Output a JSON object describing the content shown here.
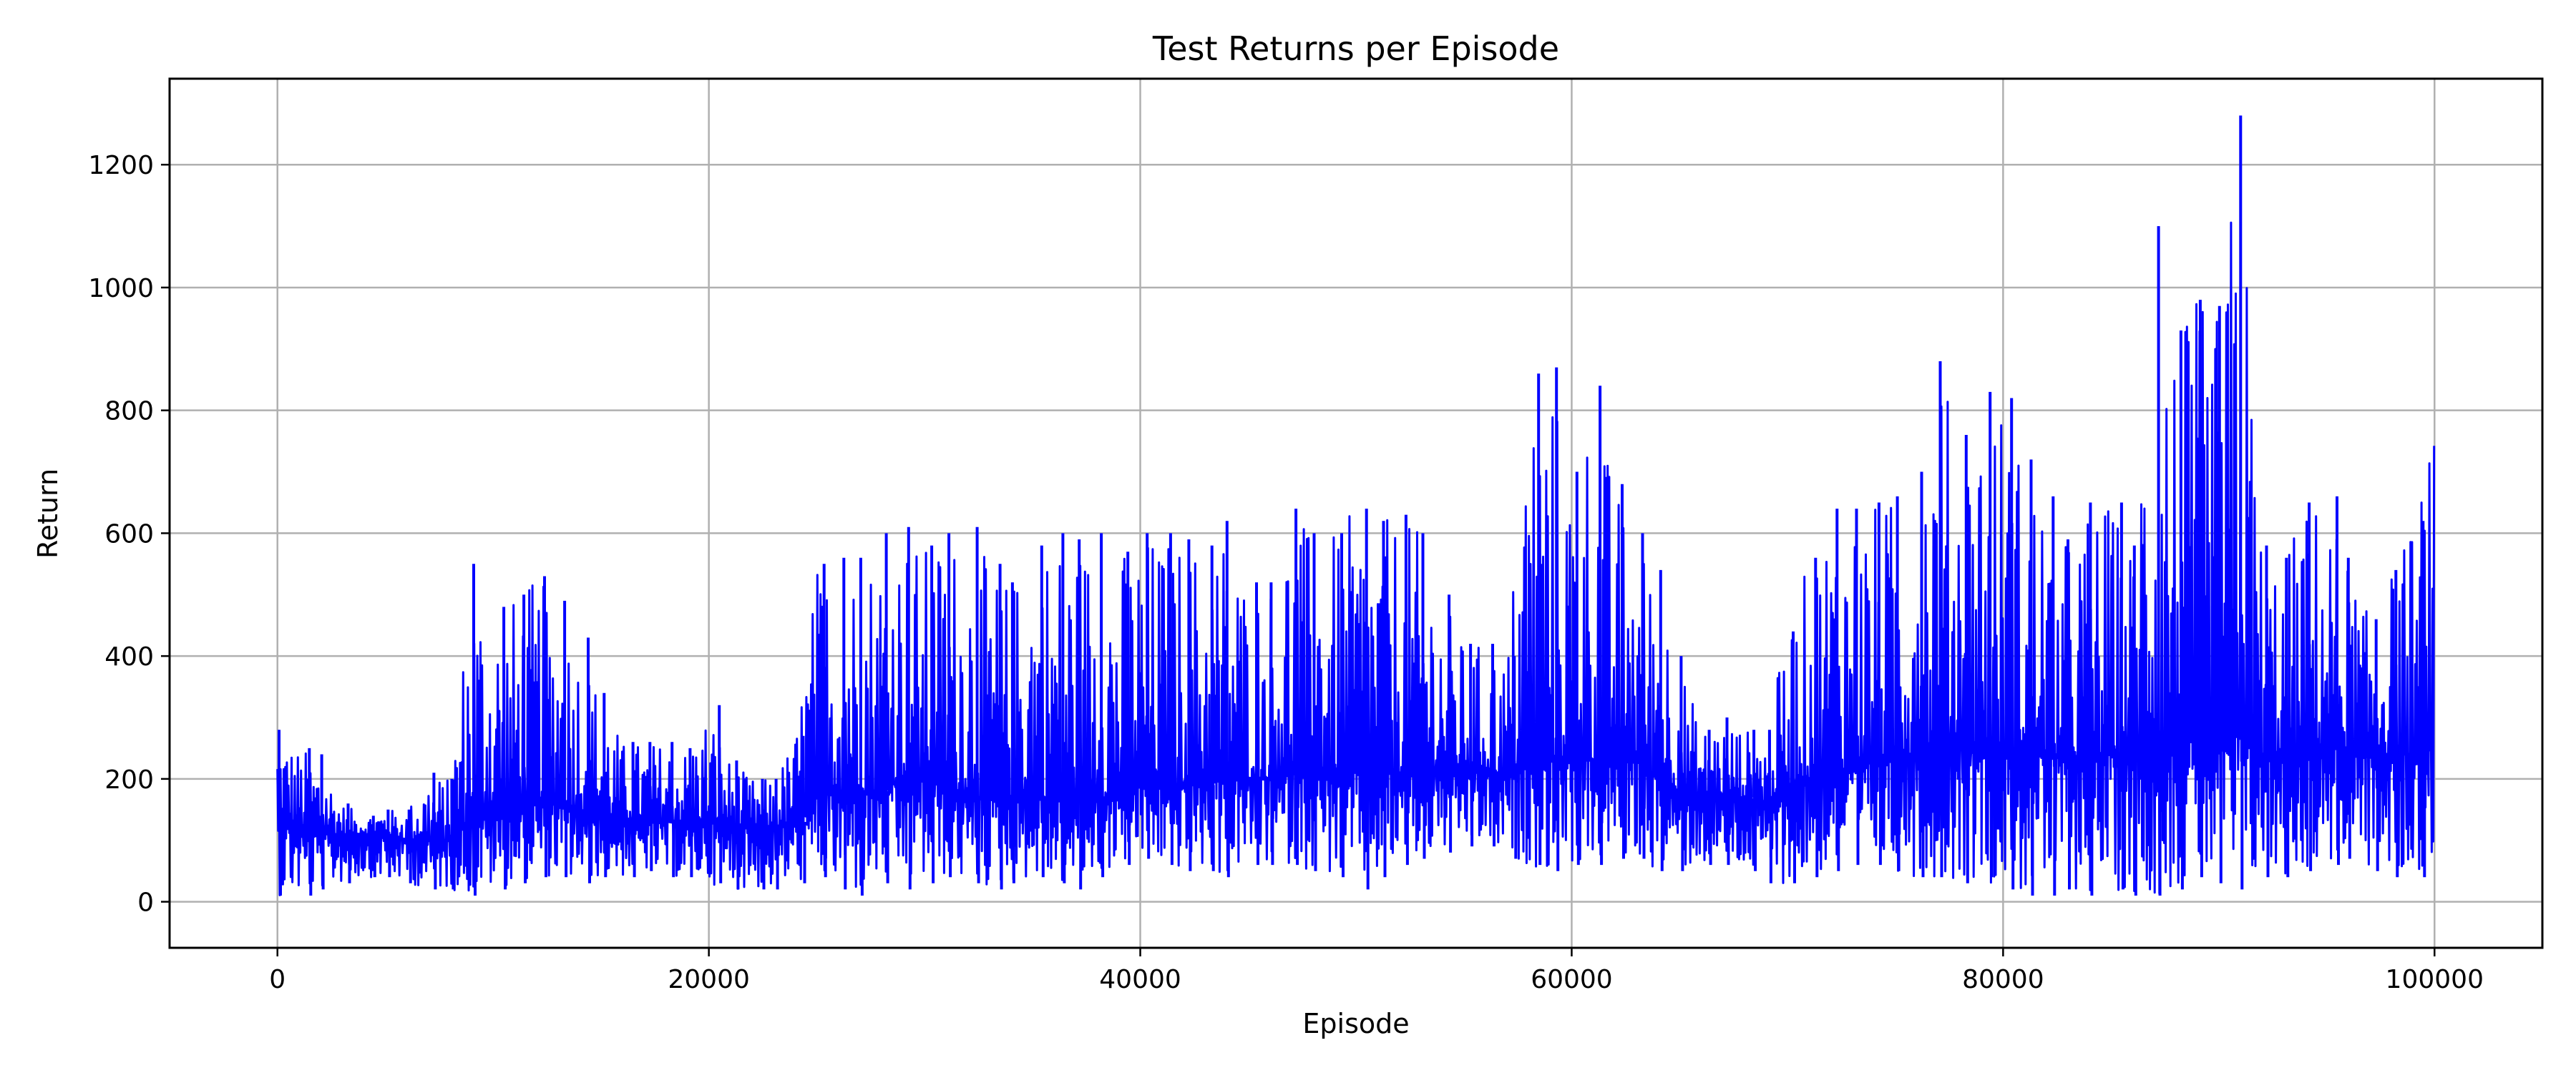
{
  "chart_data": {
    "type": "line",
    "title": "Test Returns per Episode",
    "xlabel": "Episode",
    "ylabel": "Return",
    "xlim": [
      -5000,
      105000
    ],
    "ylim": [
      -75,
      1340
    ],
    "xticks": [
      0,
      20000,
      40000,
      60000,
      80000,
      100000
    ],
    "yticks": [
      0,
      200,
      400,
      600,
      800,
      1000,
      1200
    ],
    "grid": true,
    "line_color": "#0000ff",
    "grid_color": "#b0b0b0",
    "envelope_step": 1000,
    "envelope_x_start": 0,
    "envelope_min": [
      10,
      10,
      20,
      30,
      40,
      40,
      30,
      20,
      20,
      10,
      20,
      30,
      40,
      40,
      30,
      40,
      40,
      50,
      40,
      40,
      30,
      20,
      20,
      20,
      30,
      40,
      20,
      10,
      30,
      20,
      30,
      40,
      30,
      20,
      30,
      40,
      30,
      20,
      40,
      60,
      70,
      60,
      50,
      50,
      40,
      60,
      60,
      60,
      50,
      40,
      20,
      40,
      60,
      70,
      80,
      90,
      90,
      70,
      60,
      50,
      60,
      60,
      70,
      70,
      50,
      50,
      60,
      60,
      50,
      30,
      30,
      40,
      50,
      60,
      60,
      50,
      40,
      40,
      30,
      40,
      20,
      10,
      10,
      20,
      10,
      20,
      10,
      10,
      20,
      40,
      30,
      20,
      40,
      40,
      50,
      60,
      70,
      50,
      40,
      40,
      50
    ],
    "envelope_max": [
      280,
      250,
      240,
      160,
      140,
      150,
      150,
      210,
      200,
      550,
      480,
      500,
      530,
      490,
      430,
      340,
      260,
      260,
      260,
      250,
      320,
      230,
      200,
      200,
      270,
      550,
      560,
      560,
      600,
      610,
      580,
      600,
      610,
      550,
      520,
      580,
      600,
      590,
      600,
      570,
      600,
      600,
      590,
      580,
      620,
      520,
      520,
      640,
      600,
      600,
      640,
      620,
      630,
      600,
      500,
      420,
      420,
      400,
      860,
      870,
      700,
      840,
      680,
      600,
      540,
      400,
      280,
      300,
      280,
      280,
      440,
      560,
      640,
      640,
      650,
      660,
      700,
      880,
      760,
      830,
      820,
      720,
      660,
      590,
      650,
      650,
      580,
      1100,
      930,
      980,
      970,
      1280,
      580,
      560,
      650,
      660,
      560,
      460,
      540,
      620,
      770
    ],
    "envelope_mid": [
      150,
      120,
      110,
      110,
      110,
      110,
      100,
      100,
      100,
      140,
      140,
      150,
      170,
      160,
      150,
      140,
      130,
      130,
      130,
      130,
      130,
      120,
      120,
      120,
      130,
      170,
      180,
      180,
      180,
      200,
      200,
      190,
      170,
      170,
      170,
      170,
      170,
      170,
      170,
      170,
      190,
      190,
      190,
      190,
      200,
      200,
      200,
      210,
      210,
      210,
      210,
      210,
      210,
      210,
      210,
      210,
      210,
      200,
      220,
      230,
      230,
      230,
      230,
      230,
      200,
      180,
      170,
      170,
      170,
      160,
      190,
      200,
      210,
      220,
      230,
      230,
      240,
      250,
      250,
      250,
      240,
      240,
      240,
      230,
      230,
      240,
      240,
      250,
      260,
      260,
      260,
      280,
      240,
      240,
      250,
      250,
      250,
      240,
      240,
      240,
      250
    ]
  }
}
